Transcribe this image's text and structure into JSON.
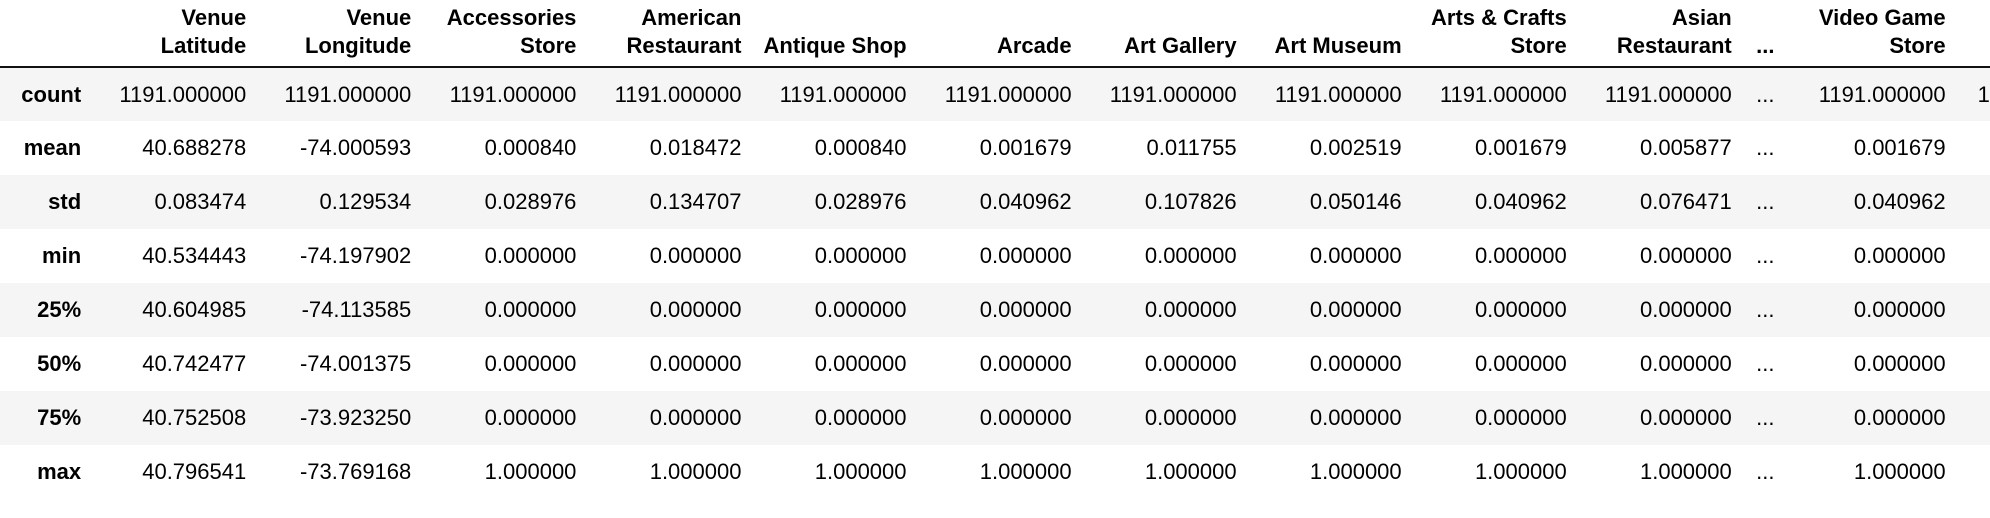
{
  "table": {
    "columns": [
      "Venue Latitude",
      "Venue Longitude",
      "Accessories Store",
      "American Restaurant",
      "Antique Shop",
      "Arcade",
      "Art Gallery",
      "Art Museum",
      "Arts & Crafts Store",
      "Asian Restaurant",
      "...",
      "Video Game Store"
    ],
    "rows": [
      {
        "label": "count",
        "values": [
          "1191.000000",
          "1191.000000",
          "1191.000000",
          "1191.000000",
          "1191.000000",
          "1191.000000",
          "1191.000000",
          "1191.000000",
          "1191.000000",
          "1191.000000",
          "...",
          "1191.000000"
        ],
        "trailing": "1"
      },
      {
        "label": "mean",
        "values": [
          "40.688278",
          "-74.000593",
          "0.000840",
          "0.018472",
          "0.000840",
          "0.001679",
          "0.011755",
          "0.002519",
          "0.001679",
          "0.005877",
          "...",
          "0.001679"
        ],
        "trailing": ""
      },
      {
        "label": "std",
        "values": [
          "0.083474",
          "0.129534",
          "0.028976",
          "0.134707",
          "0.028976",
          "0.040962",
          "0.107826",
          "0.050146",
          "0.040962",
          "0.076471",
          "...",
          "0.040962"
        ],
        "trailing": ""
      },
      {
        "label": "min",
        "values": [
          "40.534443",
          "-74.197902",
          "0.000000",
          "0.000000",
          "0.000000",
          "0.000000",
          "0.000000",
          "0.000000",
          "0.000000",
          "0.000000",
          "...",
          "0.000000"
        ],
        "trailing": ""
      },
      {
        "label": "25%",
        "values": [
          "40.604985",
          "-74.113585",
          "0.000000",
          "0.000000",
          "0.000000",
          "0.000000",
          "0.000000",
          "0.000000",
          "0.000000",
          "0.000000",
          "...",
          "0.000000"
        ],
        "trailing": ""
      },
      {
        "label": "50%",
        "values": [
          "40.742477",
          "-74.001375",
          "0.000000",
          "0.000000",
          "0.000000",
          "0.000000",
          "0.000000",
          "0.000000",
          "0.000000",
          "0.000000",
          "...",
          "0.000000"
        ],
        "trailing": ""
      },
      {
        "label": "75%",
        "values": [
          "40.752508",
          "-73.923250",
          "0.000000",
          "0.000000",
          "0.000000",
          "0.000000",
          "0.000000",
          "0.000000",
          "0.000000",
          "0.000000",
          "...",
          "0.000000"
        ],
        "trailing": ""
      },
      {
        "label": "max",
        "values": [
          "40.796541",
          "-73.769168",
          "1.000000",
          "1.000000",
          "1.000000",
          "1.000000",
          "1.000000",
          "1.000000",
          "1.000000",
          "1.000000",
          "...",
          "1.000000"
        ],
        "trailing": ""
      }
    ]
  }
}
